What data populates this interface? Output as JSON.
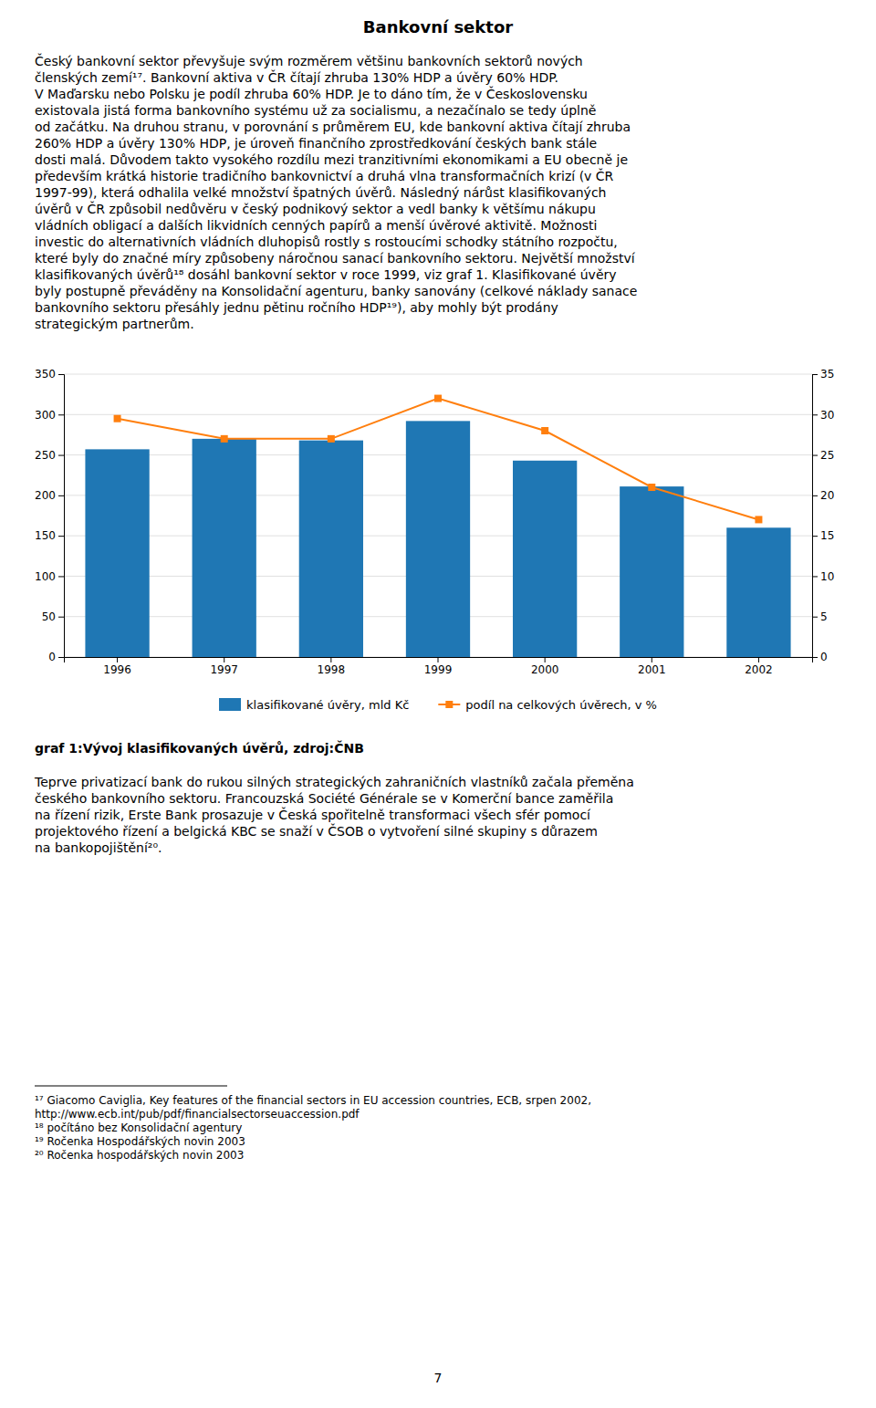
{
  "title": "Bankovní sektor",
  "para1_lines": [
    "Český bankovní sektor převyšuje svým rozměrem většinu bankovních sektorů nových",
    "členských zemí¹⁷. Bankovní aktiva v ČR čítají zhruba 130% HDP a úvěry 60% HDP.",
    "V Maďarsku nebo Polsku je podíl zhruba 60% HDP. Je to dáno tím, že v Československu",
    "existovala jistá forma bankovního systému už za socialismu, a nezačínalo se tedy úplně",
    "od začátku. Na druhou stranu, v porovnání s průměrem EU, kde bankovní aktiva čítají zhruba",
    "260% HDP a úvěry 130% HDP, je úroveň finančního zprostředkování českých bank stále",
    "dosti malá. Důvodem takto vysokého rozdílu mezi tranzitivními ekonomikami a EU obecně je",
    "především krátká historie tradičního bankovnictví a druhá vlna transformačních krizí (v ČR",
    "1997-99), která odhalila velké množství špatných úvěrů. Následný nárůst klasifikovaných",
    "úvěrů v ČR způsobil nedůvěru v český podnikový sektor a vedl banky k většímu nákupu",
    "vládních obligací a dalších likvidních cenných papírů a menší úvěrové aktivitě. Možnosti",
    "investic do alternativních vládních dluhopisů rostly s rostoucími schodky státního rozpočtu,",
    "které byly do značné míry způsobeny náročnou sanací bankovního sektoru. Největší množství",
    "klasifikovaných úvěrů¹⁸ dosáhl bankovní sektor v roce 1999, viz graf 1. Klasifikované úvěry",
    "byly postupně převáděny na Konsolidační agenturu, banky sanovány (celkové náklady sanace",
    "bankovního sektoru přesáhly jednu pětinu ročního HDP¹⁹), aby mohly být prodány",
    "strategickým partnerům."
  ],
  "chart_data": {
    "type": "bar",
    "categories": [
      "1996",
      "1997",
      "1998",
      "1999",
      "2000",
      "2001",
      "2002"
    ],
    "series": [
      {
        "name": "klasifikované úvěry, mld Kč",
        "type": "bar",
        "values": [
          257,
          270,
          268,
          292,
          243,
          211,
          160
        ]
      },
      {
        "name": "podíl na celkových úvěrech, v %",
        "type": "line",
        "axis": "y2",
        "marker": "square",
        "values": [
          29.5,
          27.0,
          27.0,
          32.0,
          28.0,
          21.0,
          17.0
        ]
      }
    ],
    "ylim": [
      0,
      350
    ],
    "yticks": [
      0,
      50,
      100,
      150,
      200,
      250,
      300,
      350
    ],
    "y2lim": [
      0,
      35
    ],
    "y2ticks": [
      0,
      5,
      10,
      15,
      20,
      25,
      30,
      35
    ],
    "grid": true,
    "legend": "bottom"
  },
  "chart_caption": "graf 1:Vývoj klasifikovaných úvěrů, zdroj:ČNB",
  "para2_lines": [
    "Teprve privatizací bank do rukou silných strategických zahraničních vlastníků začala přeměna",
    "českého bankovního sektoru. Francouzská Société Générale se v Komerční bance zaměřila",
    "na řízení rizik, Erste Bank prosazuje v Česká spořitelně transformaci všech sfér pomocí",
    "projektového řízení a belgická KBC se snaží v ČSOB o vytvoření silné skupiny s důrazem",
    "na bankopojištění²⁰."
  ],
  "footnote_lines": [
    "¹⁷ Giacomo Caviglia, Key features of the financial sectors in EU accession countries, ECB, srpen 2002,",
    "http://www.ecb.int/pub/pdf/financialsectorseuaccession.pdf",
    "¹⁸ počítáno bez Konsolidační agentury",
    "¹⁹ Ročenka Hospodářských novin 2003",
    "²⁰ Ročenka hospodářských novin 2003"
  ],
  "page_number": "7"
}
